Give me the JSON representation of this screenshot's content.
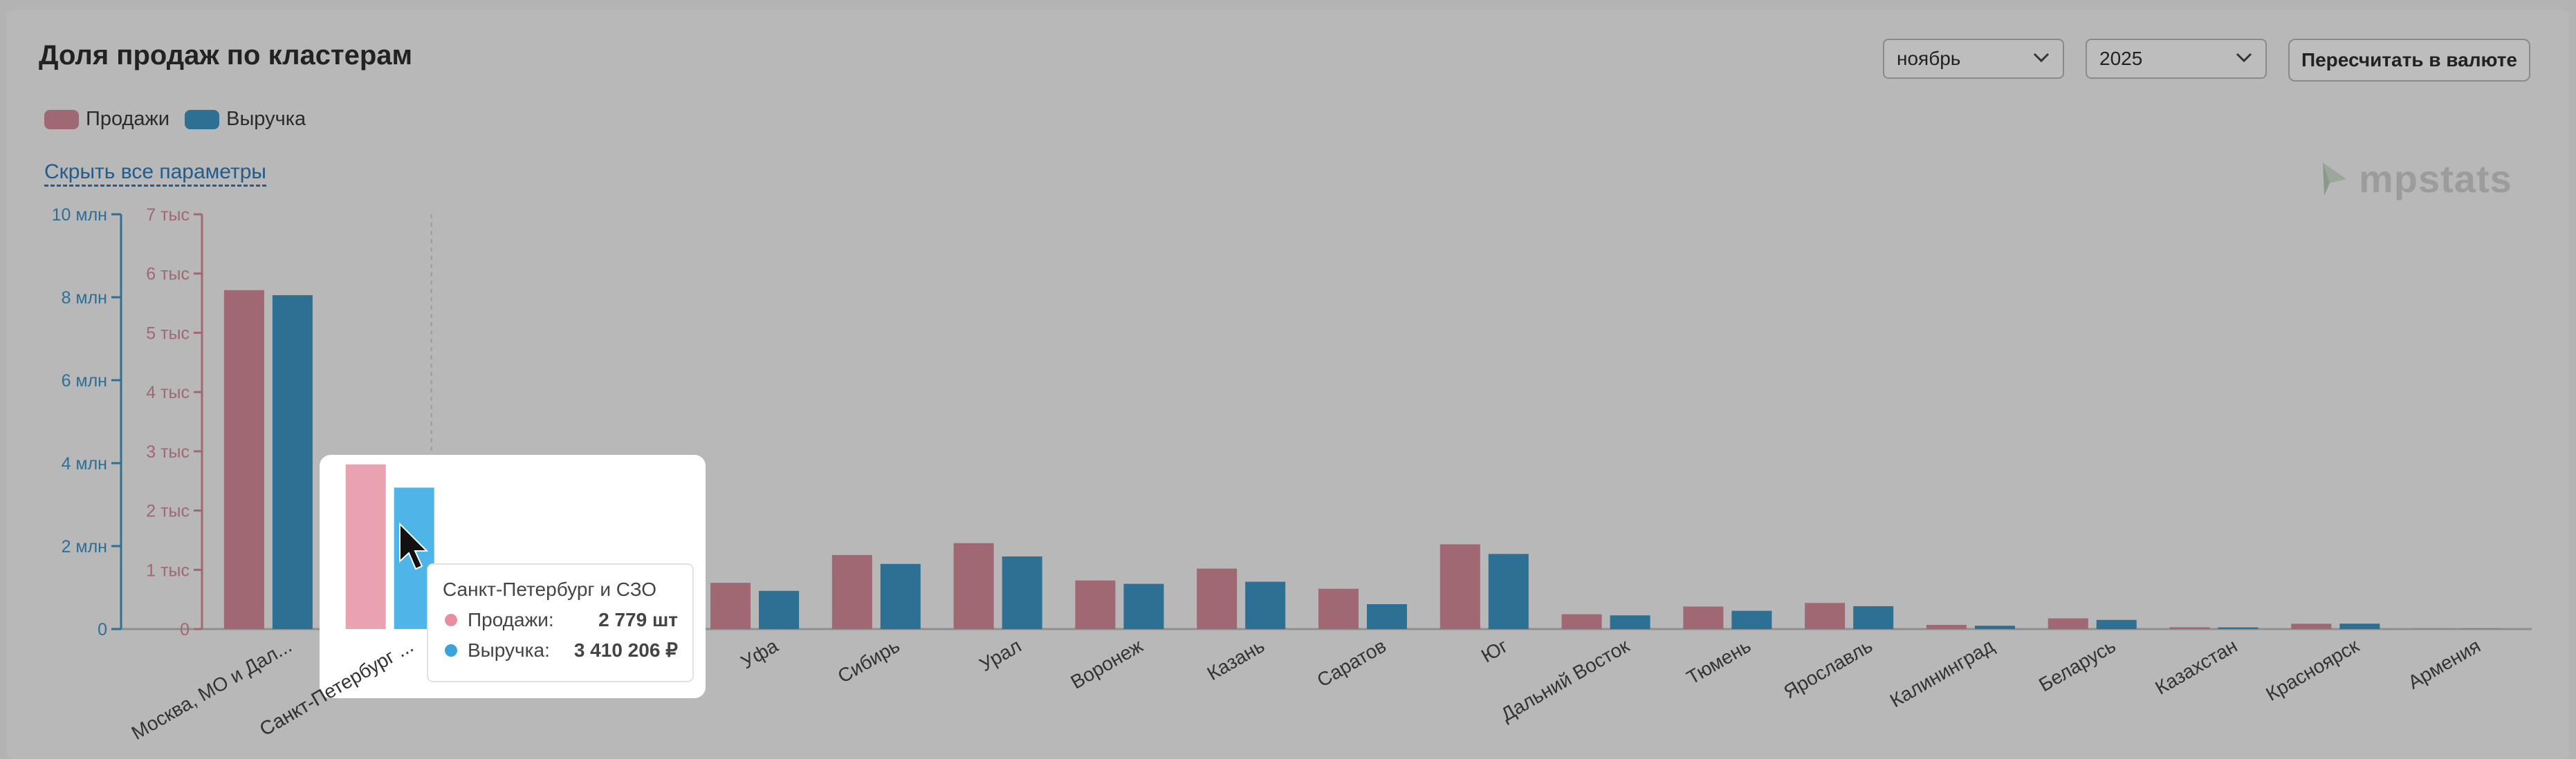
{
  "header": {
    "title": "Доля продаж по кластерам",
    "month": "ноябрь",
    "year": "2025",
    "recalc_label": "Пересчитать в валюте"
  },
  "legend": [
    {
      "name": "Продажи",
      "color": "#a06872"
    },
    {
      "name": "Выручка",
      "color": "#2e6f94"
    }
  ],
  "hide_params_label": "Скрыть все параметры",
  "logo_text": "mpstats",
  "tooltip": {
    "title": "Санкт-Петербург и СЗО",
    "rows": [
      {
        "label": "Продажи:",
        "value": "2 779 шт",
        "color": "#e78fa0"
      },
      {
        "label": "Выручка:",
        "value": "3 410 206 ₽",
        "color": "#3aa3d8"
      }
    ]
  },
  "chart_data": {
    "type": "bar",
    "categories": [
      "Москва, МО и Дал...",
      "Санкт-Петербург ...",
      "",
      "",
      "Уфа",
      "Сибирь",
      "Урал",
      "Воронеж",
      "Казань",
      "Саратов",
      "Юг",
      "Дальний Восток",
      "Тюмень",
      "Ярославль",
      "Калининград",
      "Беларусь",
      "Казахстан",
      "Красноярск",
      "Армения"
    ],
    "series": [
      {
        "name": "Продажи",
        "axis": "left_sales",
        "values": [
          5720,
          2779,
          null,
          null,
          780,
          1250,
          1450,
          820,
          1020,
          680,
          1430,
          250,
          380,
          440,
          70,
          180,
          30,
          90,
          5
        ]
      },
      {
        "name": "Выручка",
        "axis": "left_revenue",
        "values": [
          8050000,
          3410206,
          null,
          null,
          920000,
          1570000,
          1750000,
          1090000,
          1140000,
          600000,
          1810000,
          330000,
          440000,
          550000,
          80000,
          220000,
          40000,
          130000,
          5000
        ]
      }
    ],
    "axes": {
      "left_revenue": {
        "ticks": [
          "0",
          "2 млн",
          "4 млн",
          "6 млн",
          "8 млн",
          "10 млн"
        ],
        "range": [
          0,
          10000000
        ],
        "color": "#2e6f94"
      },
      "left_sales": {
        "ticks": [
          "0",
          "1 тыс",
          "2 тыс",
          "3 тыс",
          "4 тыс",
          "5 тыс",
          "6 тыс",
          "7 тыс"
        ],
        "range": [
          0,
          7000
        ],
        "color": "#a06872"
      }
    },
    "highlight_index": 1,
    "colors": {
      "sales": "#a06872",
      "revenue": "#2e6f94",
      "sales_hover": "#eba2b0",
      "revenue_hover": "#4fb5e8"
    }
  }
}
